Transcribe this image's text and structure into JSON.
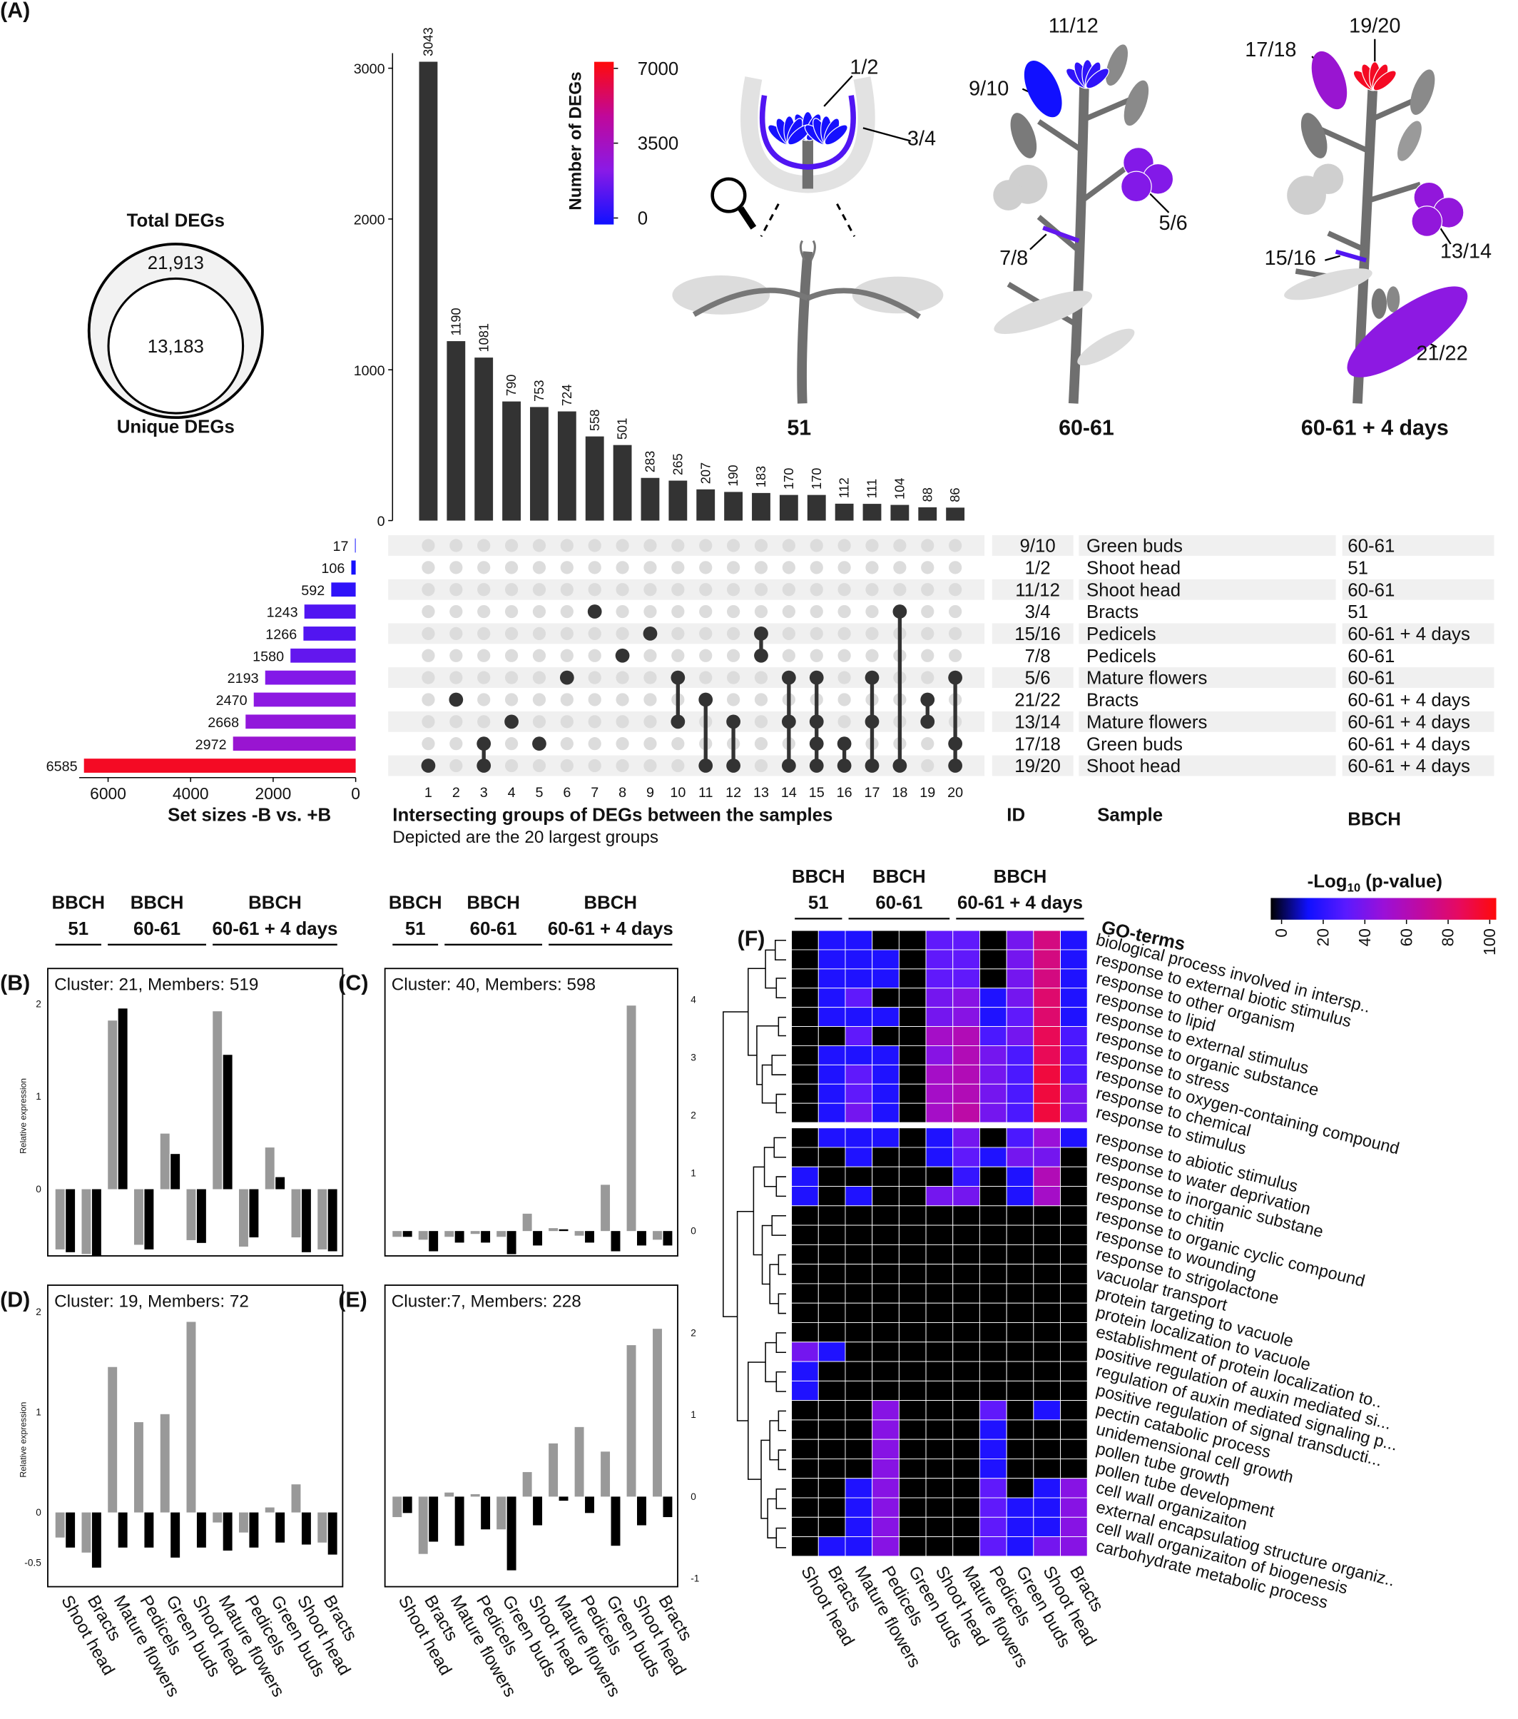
{
  "chart_data": [
    {
      "type": "venn",
      "panel": "(A)",
      "categories": [
        "Total DEGs",
        "Unique DEGs"
      ],
      "values": [
        21913,
        13183
      ],
      "value_labels": [
        "21,913",
        "13,183"
      ]
    },
    {
      "type": "upset",
      "intersections": {
        "categories": [
          1,
          2,
          3,
          4,
          5,
          6,
          7,
          8,
          9,
          10,
          11,
          12,
          13,
          14,
          15,
          16,
          17,
          18,
          19,
          20
        ],
        "values": [
          3043,
          1190,
          1081,
          790,
          753,
          724,
          558,
          501,
          283,
          265,
          207,
          190,
          183,
          170,
          170,
          112,
          111,
          104,
          88,
          86
        ],
        "ylim": [
          0,
          3100
        ],
        "yticks": [
          0,
          1000,
          2000,
          3000
        ],
        "color": "#333333",
        "members": [
          [
            10
          ],
          [
            7
          ],
          [
            9,
            10
          ],
          [
            8
          ],
          [
            9
          ],
          [
            6
          ],
          [
            3
          ],
          [
            5
          ],
          [
            4
          ],
          [
            6,
            8
          ],
          [
            7,
            10
          ],
          [
            8,
            10
          ],
          [
            4,
            5
          ],
          [
            6,
            8,
            10
          ],
          [
            6,
            8,
            9,
            10
          ],
          [
            9,
            10
          ],
          [
            6,
            8,
            10
          ],
          [
            3,
            10
          ],
          [
            7,
            8
          ],
          [
            6,
            9,
            10
          ]
        ]
      },
      "sets": {
        "ids": [
          "9/10",
          "1/2",
          "11/12",
          "3/4",
          "15/16",
          "7/8",
          "5/6",
          "21/22",
          "13/14",
          "17/18",
          "19/20"
        ],
        "samples": [
          "Green buds",
          "Shoot head",
          "Shoot head",
          "Bracts",
          "Pedicels",
          "Pedicels",
          "Mature flowers",
          "Bracts",
          "Mature flowers",
          "Green buds",
          "Shoot head"
        ],
        "bbch": [
          "60-61",
          "51",
          "60-61",
          "51",
          "60-61 + 4 days",
          "60-61",
          "60-61",
          "60-61 + 4 days",
          "60-61 + 4 days",
          "60-61 + 4 days",
          "60-61 + 4 days"
        ],
        "values": [
          17,
          106,
          592,
          1243,
          1266,
          1580,
          2193,
          2470,
          2668,
          2972,
          6585
        ],
        "xlim": [
          0,
          6700
        ],
        "xticks": [
          0,
          2000,
          4000,
          6000
        ],
        "xlabel": "Set sizes -B vs. +B"
      },
      "matrix_title": "Intersecting groups of DEGs between the samples",
      "matrix_subtitle": "Depicted are the 20 largest groups",
      "column_headers": [
        "ID",
        "Sample",
        "BBCH"
      ],
      "colorbar": {
        "title": "Number of DEGs",
        "clim": [
          0,
          7000
        ],
        "ticks": [
          0,
          3500,
          7000
        ],
        "colors": [
          "#1010ff",
          "#8a1ae6",
          "#c0089a",
          "#ff0a0a"
        ]
      },
      "illustration": {
        "stages": [
          "51",
          "60-61",
          "60-61 + 4 days"
        ],
        "labels": [
          "1/2",
          "3/4",
          "9/10",
          "11/12",
          "5/6",
          "7/8",
          "17/18",
          "19/20",
          "13/14",
          "15/16",
          "21/22"
        ]
      }
    },
    {
      "type": "bar",
      "panel": "(B)",
      "title": "Cluster: 21, Members: 519",
      "ylabel": "Relative expression",
      "headers": [
        [
          "BBCH",
          "51"
        ],
        [
          "BBCH",
          "60-61"
        ],
        [
          "BBCH",
          "60-61 + 4 days"
        ]
      ],
      "series": [
        {
          "color": "#999999",
          "values": [
            -0.65,
            -0.7,
            1.82,
            -0.6,
            0.6,
            -0.55,
            1.92,
            -0.62,
            0.45,
            -0.52,
            -0.65
          ]
        },
        {
          "color": "#000000",
          "values": [
            -0.68,
            -0.72,
            1.95,
            -0.65,
            0.38,
            -0.58,
            1.45,
            -0.52,
            0.13,
            -0.68,
            -0.67
          ]
        }
      ],
      "ylim": [
        -0.72,
        2.3
      ],
      "yticks": [
        0,
        1,
        2
      ]
    },
    {
      "type": "bar",
      "panel": "(C)",
      "title": "Cluster: 40, Members: 598",
      "headers": [
        [
          "BBCH",
          "51"
        ],
        [
          "BBCH",
          "60-61"
        ],
        [
          "BBCH",
          "60-61 + 4 days"
        ]
      ],
      "series": [
        {
          "color": "#999999",
          "values": [
            -0.1,
            -0.15,
            -0.1,
            -0.05,
            -0.1,
            0.3,
            0.05,
            -0.08,
            0.8,
            3.9,
            -0.15
          ]
        },
        {
          "color": "#000000",
          "values": [
            -0.1,
            -0.35,
            -0.2,
            -0.2,
            -0.4,
            -0.25,
            0.03,
            -0.2,
            -0.35,
            -0.25,
            -0.25
          ]
        }
      ],
      "ylim": [
        -0.43,
        4.41
      ],
      "yticks": [
        0,
        1,
        2,
        3,
        4
      ]
    },
    {
      "type": "bar",
      "panel": "(D)",
      "title": "Cluster: 19, Members: 72",
      "ylabel": "Relative expression",
      "categories": [
        "Shoot head",
        "Bracts",
        "Mature flowers",
        "Pedicels",
        "Green buds",
        "Shoot head",
        "Mature flowers",
        "Pedicels",
        "Green buds",
        "Shoot head",
        "Bracts"
      ],
      "series": [
        {
          "color": "#999999",
          "values": [
            -0.25,
            -0.4,
            1.45,
            0.9,
            0.98,
            1.9,
            -0.1,
            -0.2,
            0.05,
            0.28,
            -0.3
          ]
        },
        {
          "color": "#000000",
          "values": [
            -0.35,
            -0.55,
            -0.35,
            -0.35,
            -0.45,
            -0.35,
            -0.38,
            -0.35,
            -0.3,
            -0.32,
            -0.42
          ]
        }
      ],
      "ylim": [
        -0.74,
        2.19
      ],
      "yticks": [
        -0.5,
        0,
        1,
        2
      ]
    },
    {
      "type": "bar",
      "panel": "(E)",
      "title": "Cluster:7, Members: 228",
      "categories": [
        "Shoot head",
        "Bracts",
        "Mature flowers",
        "Pedicels",
        "Green buds",
        "Shoot head",
        "Mature flowers",
        "Pedicels",
        "Green buds",
        "Shoot head",
        "Bracts"
      ],
      "series": [
        {
          "color": "#999999",
          "values": [
            -0.25,
            -0.7,
            0.05,
            0.03,
            -0.4,
            0.3,
            0.65,
            0.85,
            0.55,
            1.85,
            2.05
          ]
        },
        {
          "color": "#000000",
          "values": [
            -0.2,
            -0.55,
            -0.6,
            -0.4,
            -0.9,
            -0.35,
            -0.05,
            -0.2,
            -0.6,
            -0.35,
            -0.25
          ]
        }
      ],
      "ylim": [
        -1.1,
        2.49
      ],
      "yticks": [
        -1,
        0,
        1,
        2
      ]
    },
    {
      "type": "heatmap",
      "panel": "(F)",
      "headers": [
        [
          "BBCH",
          "51"
        ],
        [
          "BBCH",
          "60-61"
        ],
        [
          "BBCH",
          "60-61 + 4 days"
        ]
      ],
      "columns": [
        "Shoot head",
        "Bracts",
        "Mature flowers",
        "Pedicels",
        "Green buds",
        "Shoot head",
        "Mature flowers",
        "Pedicels",
        "Green buds",
        "Shoot head",
        "Bracts"
      ],
      "rows_label": "GO-terms",
      "rows": [
        "biological process involved in intersp..",
        "response to external biotic stimulus",
        "response to other organism",
        "response to lipid",
        "response to external stimulus",
        "response to organic substance",
        "response to stress",
        "response to oxygen-containing compound",
        "response to chemical",
        "response to stimulus",
        "response to abiotic stimulus",
        "response to water deprivation",
        "response to inorganic substane",
        "response to chitin",
        "response to organic cyclic compound",
        "response to wounding",
        "response to strigolactone",
        "vacuolar transport",
        "protein targeting to vacuole",
        "protein localization to vacuole",
        "establishment of protein localization to..",
        "positive regulation of auxin mediated si...",
        "regulation of auxin mediated signaling p...",
        "positive regulation of signal transducti...",
        "pectin catabolic process",
        "unidemensional cell growth",
        "pollen tube growth",
        "pollen tube development",
        "cell wall organizaiton",
        "external encapsulatiog structure organiz..",
        "cell wall organizaiton of biogenesis",
        "carbohydrate metabolic process"
      ],
      "values": [
        [
          0,
          20,
          20,
          0,
          0,
          35,
          35,
          0,
          40,
          75,
          20
        ],
        [
          0,
          20,
          20,
          20,
          0,
          35,
          35,
          0,
          40,
          75,
          20
        ],
        [
          0,
          20,
          20,
          20,
          0,
          35,
          35,
          0,
          40,
          75,
          20
        ],
        [
          0,
          20,
          35,
          0,
          0,
          40,
          45,
          20,
          40,
          80,
          20
        ],
        [
          0,
          20,
          20,
          20,
          0,
          40,
          45,
          20,
          35,
          80,
          20
        ],
        [
          0,
          0,
          35,
          0,
          0,
          55,
          60,
          30,
          40,
          85,
          30
        ],
        [
          0,
          20,
          20,
          20,
          0,
          45,
          60,
          40,
          30,
          85,
          30
        ],
        [
          0,
          20,
          35,
          20,
          0,
          55,
          60,
          40,
          30,
          90,
          30
        ],
        [
          0,
          20,
          35,
          20,
          0,
          55,
          60,
          40,
          30,
          90,
          40
        ],
        [
          0,
          20,
          40,
          20,
          0,
          55,
          65,
          40,
          30,
          90,
          40
        ],
        [
          0,
          20,
          20,
          20,
          0,
          20,
          40,
          0,
          30,
          50,
          20
        ],
        [
          0,
          0,
          20,
          0,
          0,
          20,
          35,
          20,
          40,
          40,
          0
        ],
        [
          20,
          0,
          0,
          0,
          0,
          0,
          25,
          0,
          20,
          60,
          0
        ],
        [
          20,
          0,
          20,
          0,
          0,
          40,
          40,
          0,
          20,
          55,
          0
        ],
        [
          0,
          0,
          0,
          0,
          0,
          0,
          0,
          0,
          0,
          0,
          0
        ],
        [
          0,
          0,
          0,
          0,
          0,
          0,
          0,
          0,
          0,
          0,
          0
        ],
        [
          0,
          0,
          0,
          0,
          0,
          0,
          0,
          0,
          0,
          0,
          0
        ],
        [
          0,
          0,
          0,
          0,
          0,
          0,
          0,
          0,
          0,
          0,
          0
        ],
        [
          0,
          0,
          0,
          0,
          0,
          0,
          0,
          0,
          0,
          0,
          0
        ],
        [
          0,
          0,
          0,
          0,
          0,
          0,
          0,
          0,
          0,
          0,
          0
        ],
        [
          0,
          0,
          0,
          0,
          0,
          0,
          0,
          0,
          0,
          0,
          0
        ],
        [
          40,
          20,
          0,
          0,
          0,
          0,
          0,
          0,
          0,
          0,
          0
        ],
        [
          20,
          0,
          0,
          0,
          0,
          0,
          0,
          0,
          0,
          0,
          0
        ],
        [
          20,
          0,
          0,
          0,
          0,
          0,
          0,
          0,
          0,
          0,
          0
        ],
        [
          0,
          0,
          0,
          45,
          0,
          0,
          0,
          35,
          0,
          20,
          0
        ],
        [
          0,
          0,
          0,
          45,
          0,
          0,
          0,
          20,
          0,
          0,
          0
        ],
        [
          0,
          0,
          0,
          45,
          0,
          0,
          0,
          20,
          0,
          0,
          0
        ],
        [
          0,
          0,
          0,
          45,
          0,
          0,
          0,
          20,
          0,
          0,
          0
        ],
        [
          0,
          0,
          20,
          45,
          0,
          0,
          0,
          35,
          0,
          20,
          45
        ],
        [
          0,
          0,
          20,
          45,
          0,
          0,
          0,
          35,
          20,
          20,
          45
        ],
        [
          0,
          0,
          20,
          45,
          0,
          0,
          0,
          35,
          20,
          20,
          45
        ],
        [
          0,
          20,
          20,
          45,
          0,
          0,
          0,
          35,
          20,
          40,
          45
        ]
      ],
      "colorbar": {
        "title": {
          "main": "-Log",
          "sub": "10",
          "rest": " (p-value)"
        },
        "clim": [
          0,
          100
        ],
        "ticks": [
          0,
          20,
          40,
          60,
          80,
          100
        ],
        "colors": [
          "#000000",
          "#1010ff",
          "#5a1aff",
          "#9a10d8",
          "#c00aa0",
          "#e60a60",
          "#ff0a0a"
        ]
      }
    }
  ]
}
